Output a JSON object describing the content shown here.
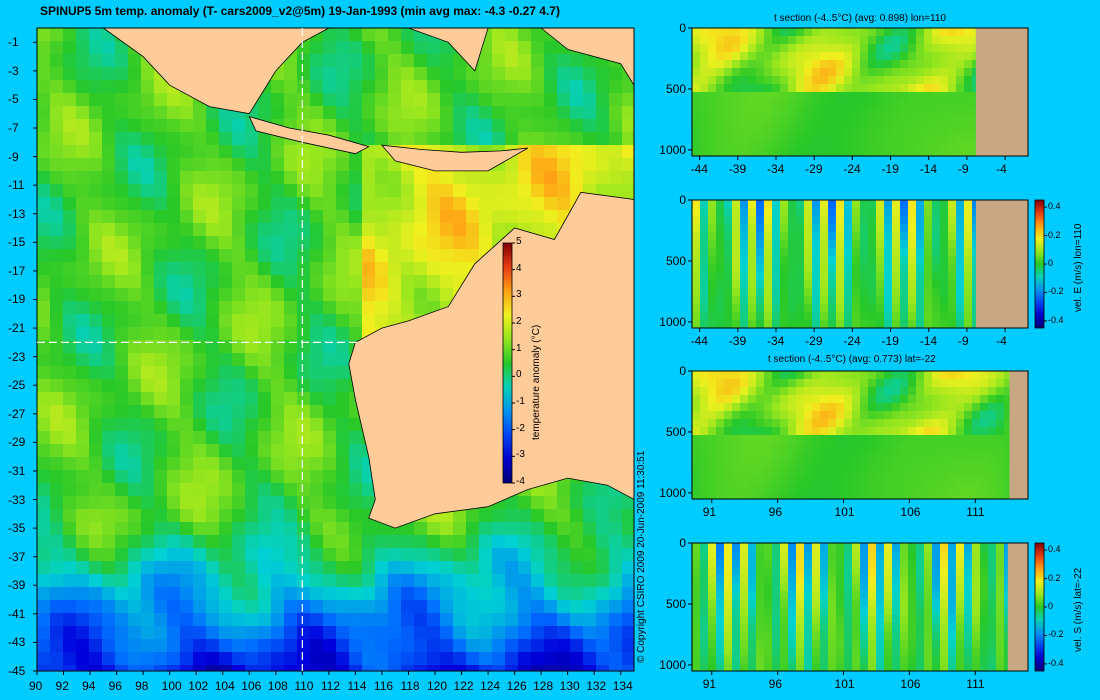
{
  "main_title": "SPINUP5 5m temp. anomaly (T- cars2009_v2@5m) 19-Jan-1993 (min avg max: -4.3 -0.27 4.7)",
  "copyright": "© Copyright CSIRO 2009   20-Jun-2009 11:30:51",
  "colors": {
    "background": "#00ccff",
    "land": "#ffcc99",
    "section_land": "#c8a882",
    "crosshair": "#ffffff"
  },
  "chart_data": [
    {
      "type": "heatmap",
      "title": "SPINUP5 5m temp. anomaly (T- cars2009_v2@5m) 19-Jan-1993 (min avg max: -4.3 -0.27 4.7)",
      "x_ticks": [
        "90",
        "92",
        "94",
        "96",
        "98",
        "100",
        "102",
        "104",
        "106",
        "108",
        "110",
        "112",
        "114",
        "116",
        "118",
        "120",
        "122",
        "124",
        "126",
        "128",
        "130",
        "132",
        "134"
      ],
      "y_ticks": [
        "-1",
        "-3",
        "-5",
        "-7",
        "-9",
        "-11",
        "-13",
        "-15",
        "-17",
        "-19",
        "-21",
        "-23",
        "-25",
        "-27",
        "-29",
        "-31",
        "-33",
        "-35",
        "-37",
        "-39",
        "-41",
        "-43",
        "-45"
      ],
      "xlim": [
        90,
        135
      ],
      "ylim": [
        -45,
        0
      ],
      "crosshair": {
        "lon": 110,
        "lat": -22
      },
      "colorbar": {
        "label": "temperature anomaly (°C)",
        "ticks": [
          "5",
          "4",
          "3",
          "2",
          "1",
          "0",
          "-1",
          "-2",
          "-3",
          "-4"
        ],
        "range": [
          -4,
          5
        ]
      },
      "summary": {
        "min": -4.3,
        "avg": -0.27,
        "max": 4.7
      }
    },
    {
      "type": "heatmap",
      "title": "t section (-4..5°C) (avg: 0.898) lon=110",
      "x_ticks": [
        "-44",
        "-39",
        "-34",
        "-29",
        "-24",
        "-19",
        "-14",
        "-9",
        "-4"
      ],
      "y_ticks": [
        "0",
        "500",
        "1000"
      ],
      "xlim": [
        -45,
        -1
      ],
      "ylim": [
        1050,
        0
      ]
    },
    {
      "type": "heatmap",
      "title": "",
      "x_ticks": [
        "-44",
        "-39",
        "-34",
        "-29",
        "-24",
        "-19",
        "-14",
        "-9",
        "-4"
      ],
      "y_ticks": [
        "0",
        "500",
        "1000"
      ],
      "xlim": [
        -45,
        -1
      ],
      "ylim": [
        1050,
        0
      ],
      "colorbar": {
        "label": "vel. E (m/s) lon=110",
        "ticks": [
          "0.4",
          "0.2",
          "0",
          "-0.2",
          "-0.4"
        ],
        "range": [
          -0.45,
          0.45
        ]
      }
    },
    {
      "type": "heatmap",
      "title": "t section (-4..5°C) (avg: 0.773) lat=-22",
      "x_ticks": [
        "91",
        "96",
        "101",
        "106",
        "111"
      ],
      "y_ticks": [
        "0",
        "500",
        "1000"
      ],
      "xlim": [
        89.5,
        115
      ],
      "ylim": [
        1050,
        0
      ]
    },
    {
      "type": "heatmap",
      "title": "",
      "x_ticks": [
        "91",
        "96",
        "101",
        "106",
        "111"
      ],
      "y_ticks": [
        "0",
        "500",
        "1000"
      ],
      "xlim": [
        89.5,
        115
      ],
      "ylim": [
        1050,
        0
      ],
      "colorbar": {
        "label": "vel. S (m/s) lat=-22",
        "ticks": [
          "0.4",
          "0.2",
          "0",
          "-0.2",
          "-0.4"
        ],
        "range": [
          -0.45,
          0.45
        ]
      }
    }
  ]
}
